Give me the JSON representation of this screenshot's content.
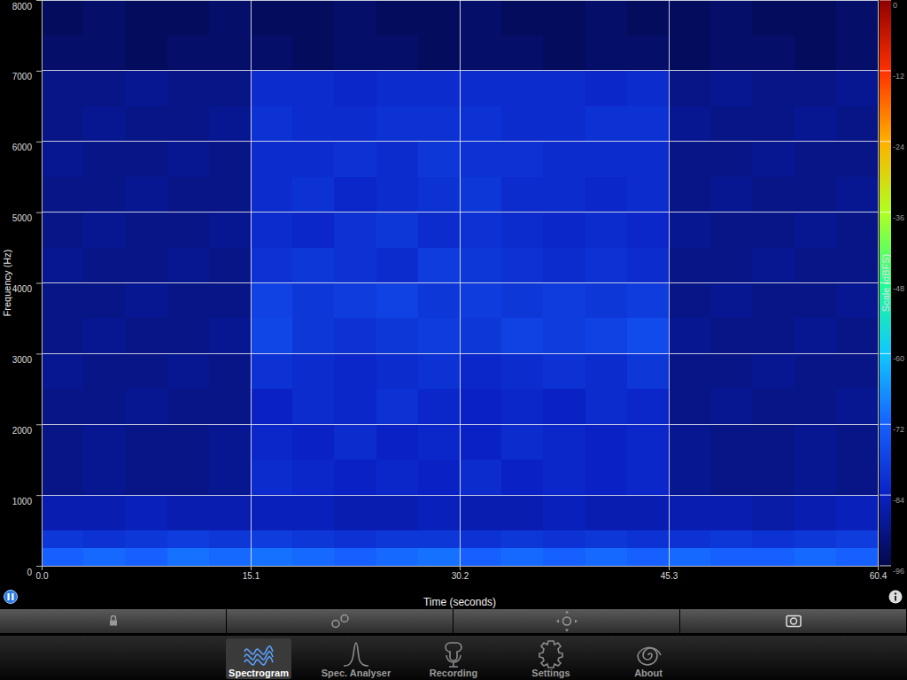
{
  "chart_data": {
    "type": "heatmap",
    "xlabel": "Time (seconds)",
    "ylabel": "Frequency (Hz)",
    "xlim": [
      0,
      60.4
    ],
    "ylim": [
      0,
      8000
    ],
    "xticks": [
      {
        "value": 0,
        "label": "0.0"
      },
      15.1,
      30.2,
      45.3,
      60.4
    ],
    "yticks": [
      0,
      1000,
      2000,
      3000,
      4000,
      5000,
      6000,
      7000,
      8000
    ],
    "grid": true,
    "x_edges": [
      0,
      3.02,
      6.04,
      9.06,
      12.08,
      15.1,
      18.12,
      21.14,
      24.16,
      27.18,
      30.2,
      33.22,
      36.24,
      39.26,
      42.28,
      45.3,
      48.32,
      51.34,
      54.36,
      57.38,
      60.4
    ],
    "y_edges": [
      0,
      250,
      500,
      1000,
      1500,
      2000,
      2500,
      3000,
      3500,
      4000,
      4500,
      5000,
      5500,
      6000,
      6500,
      7000,
      7500,
      8000
    ],
    "cells": [
      [
        -72,
        -71,
        -72,
        -70,
        -71,
        -70,
        -71,
        -72,
        -71,
        -70,
        -72,
        -71,
        -72,
        -71,
        -72,
        -71,
        -72,
        -72,
        -71,
        -72
      ],
      [
        -80,
        -81,
        -80,
        -79,
        -80,
        -79,
        -80,
        -81,
        -80,
        -80,
        -81,
        -80,
        -81,
        -80,
        -81,
        -81,
        -80,
        -81,
        -80,
        -79
      ],
      [
        -86,
        -86,
        -85,
        -86,
        -86,
        -85,
        -85,
        -86,
        -86,
        -85,
        -86,
        -86,
        -85,
        -86,
        -86,
        -86,
        -86,
        -87,
        -86,
        -85
      ],
      [
        -90,
        -89,
        -90,
        -90,
        -89,
        -82,
        -83,
        -84,
        -83,
        -84,
        -82,
        -84,
        -83,
        -84,
        -83,
        -89,
        -90,
        -90,
        -89,
        -90
      ],
      [
        -90,
        -89,
        -90,
        -90,
        -89,
        -83,
        -84,
        -82,
        -84,
        -83,
        -84,
        -82,
        -83,
        -84,
        -83,
        -89,
        -90,
        -90,
        -89,
        -90
      ],
      [
        -90,
        -90,
        -89,
        -90,
        -90,
        -84,
        -82,
        -83,
        -81,
        -83,
        -84,
        -83,
        -84,
        -82,
        -83,
        -90,
        -89,
        -90,
        -90,
        -89
      ],
      [
        -89,
        -90,
        -90,
        -89,
        -90,
        -81,
        -82,
        -83,
        -82,
        -81,
        -83,
        -82,
        -81,
        -82,
        -80,
        -90,
        -90,
        -89,
        -90,
        -90
      ],
      [
        -90,
        -89,
        -90,
        -90,
        -89,
        -77,
        -80,
        -81,
        -80,
        -79,
        -80,
        -78,
        -79,
        -78,
        -76,
        -89,
        -90,
        -90,
        -89,
        -90
      ],
      [
        -90,
        -90,
        -89,
        -90,
        -90,
        -78,
        -80,
        -79,
        -78,
        -80,
        -79,
        -80,
        -79,
        -80,
        -79,
        -90,
        -89,
        -90,
        -90,
        -89
      ],
      [
        -89,
        -90,
        -90,
        -89,
        -90,
        -81,
        -80,
        -81,
        -82,
        -79,
        -80,
        -81,
        -82,
        -81,
        -82,
        -90,
        -90,
        -89,
        -90,
        -90
      ],
      [
        -90,
        -89,
        -90,
        -90,
        -89,
        -82,
        -83,
        -81,
        -80,
        -82,
        -81,
        -82,
        -83,
        -82,
        -83,
        -89,
        -90,
        -90,
        -89,
        -90
      ],
      [
        -90,
        -90,
        -89,
        -90,
        -90,
        -82,
        -81,
        -83,
        -82,
        -81,
        -80,
        -82,
        -82,
        -83,
        -82,
        -90,
        -89,
        -90,
        -90,
        -89
      ],
      [
        -89,
        -90,
        -90,
        -89,
        -90,
        -82,
        -82,
        -81,
        -82,
        -80,
        -81,
        -81,
        -82,
        -82,
        -82,
        -90,
        -90,
        -89,
        -90,
        -90
      ],
      [
        -90,
        -89,
        -90,
        -90,
        -89,
        -81,
        -82,
        -82,
        -81,
        -81,
        -81,
        -82,
        -82,
        -81,
        -81,
        -89,
        -90,
        -90,
        -89,
        -90
      ],
      [
        -90,
        -90,
        -89,
        -90,
        -90,
        -82,
        -82,
        -83,
        -82,
        -82,
        -82,
        -82,
        -82,
        -83,
        -82,
        -90,
        -89,
        -90,
        -90,
        -89
      ],
      [
        -93,
        -93,
        -94,
        -93,
        -93,
        -93,
        -94,
        -93,
        -93,
        -94,
        -93,
        -93,
        -94,
        -93,
        -93,
        -94,
        -93,
        -93,
        -94,
        -93
      ],
      [
        -94,
        -93,
        -94,
        -94,
        -93,
        -94,
        -94,
        -93,
        -94,
        -94,
        -93,
        -94,
        -94,
        -93,
        -94,
        -94,
        -93,
        -94,
        -94,
        -93
      ]
    ],
    "colorbar": {
      "label": "Scale (dBFS)",
      "range": [
        -96,
        0
      ],
      "ticks": [
        0,
        -12,
        -24,
        -36,
        -48,
        -60,
        -72,
        -84,
        -96
      ]
    }
  },
  "tab_bar": {
    "tabs": [
      "Spectrogram",
      "Spec. Analyser",
      "Recording",
      "Settings",
      "About"
    ],
    "selected": 0
  }
}
